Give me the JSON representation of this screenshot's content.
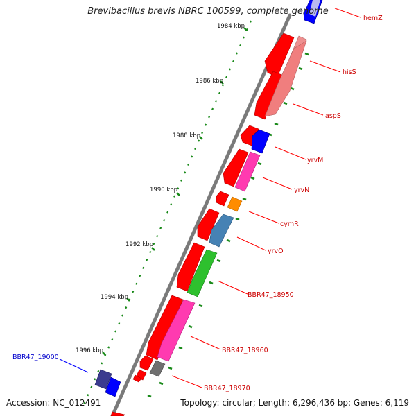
{
  "title": "Brevibacillus brevis NBRC 100599, complete genome",
  "footer": {
    "accession": "Accession: NC_012491",
    "summary": "Topology: circular; Length: 6,296,436 bp; Genes: 6,119"
  },
  "colors": {
    "backbone": "#7a7a7a",
    "forward_red": "#ff0000",
    "tick_green": "#1a8a1a",
    "gene_label_red": "#cc0000",
    "gene_label_blue": "#0000cc"
  },
  "scale_ticks": [
    {
      "label": "1984 kbp",
      "kbp": 1984
    },
    {
      "label": "1986 kbp",
      "kbp": 1986
    },
    {
      "label": "1988 kbp",
      "kbp": 1988
    },
    {
      "label": "1990 kbp",
      "kbp": 1990
    },
    {
      "label": "1992 kbp",
      "kbp": 1992
    },
    {
      "label": "1994 kbp",
      "kbp": 1994
    },
    {
      "label": "1996 kbp",
      "kbp": 1996
    }
  ],
  "gene_labels": [
    {
      "name": "hemZ",
      "color": "#cc0000"
    },
    {
      "name": "hisS",
      "color": "#cc0000"
    },
    {
      "name": "aspS",
      "color": "#cc0000"
    },
    {
      "name": "yrvM",
      "color": "#cc0000"
    },
    {
      "name": "yrvN",
      "color": "#cc0000"
    },
    {
      "name": "cymR",
      "color": "#cc0000"
    },
    {
      "name": "yrvO",
      "color": "#cc0000"
    },
    {
      "name": "BBR47_18950",
      "color": "#cc0000"
    },
    {
      "name": "BBR47_18960",
      "color": "#cc0000"
    },
    {
      "name": "BBR47_18970",
      "color": "#cc0000"
    },
    {
      "name": "BBR47_19000",
      "color": "#0000cc"
    }
  ]
}
